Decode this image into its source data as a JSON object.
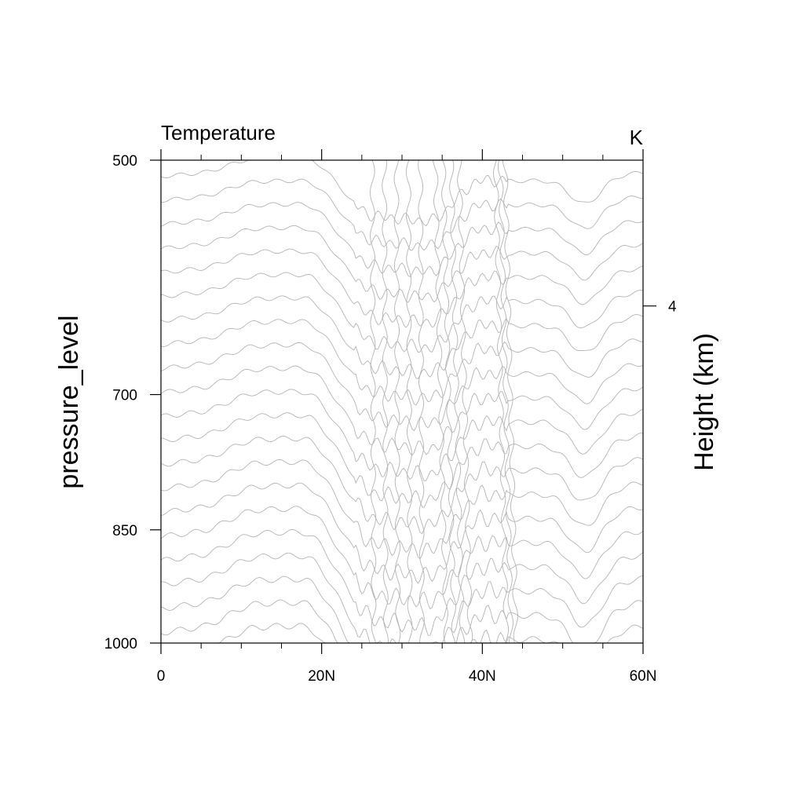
{
  "chart_data": {
    "type": "contour",
    "title": "Temperature",
    "units": "K",
    "xlabel": "",
    "ylabel": "pressure_level",
    "ylabel_right": "Height (km)",
    "x_range": [
      0,
      60
    ],
    "x_ticks": [
      {
        "value": 0,
        "label": "0"
      },
      {
        "value": 20,
        "label": "20N"
      },
      {
        "value": 40,
        "label": "40N"
      },
      {
        "value": 60,
        "label": "60N"
      }
    ],
    "x_minor_ticks": [
      5,
      10,
      15,
      25,
      30,
      35,
      45,
      50,
      55
    ],
    "y_scale": "log",
    "y_range": [
      1000,
      500
    ],
    "y_ticks": [
      {
        "value": 500,
        "label": "500"
      },
      {
        "value": 700,
        "label": "700"
      },
      {
        "value": 850,
        "label": "850"
      },
      {
        "value": 1000,
        "label": "1000"
      }
    ],
    "y_right_ticks": [
      {
        "value": 4,
        "label": "4"
      }
    ],
    "line_color": "#b4b4b4",
    "grid": false
  }
}
